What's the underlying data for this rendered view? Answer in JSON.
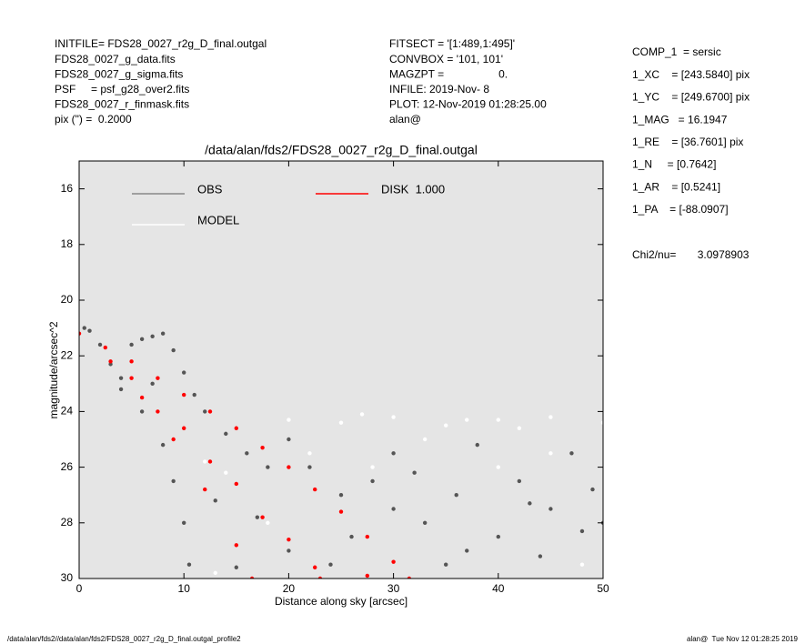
{
  "header": {
    "left": [
      "INITFILE= FDS28_0027_r2g_D_final.outgal",
      "FDS28_0027_g_data.fits",
      "FDS28_0027_g_sigma.fits",
      "PSF     = psf_g28_over2.fits",
      "FDS28_0027_r_finmask.fits",
      "pix (\") =  0.2000"
    ],
    "middle": [
      "FITSECT = '[1:489,1:495]'",
      "CONVBOX = '101, 101'",
      "MAGZPT =                  0.",
      "INFILE: 2019-Nov- 8",
      "PLOT: 12-Nov-2019 01:28:25.00",
      "alan@"
    ],
    "params": [
      "COMP_1  = sersic",
      "1_XC    = [243.5840] pix",
      "1_YC    = [249.6700] pix",
      "1_MAG   = 16.1947",
      "1_RE    = [36.7601] pix",
      "1_N     = [0.7642]",
      "1_AR    = [0.5241]",
      "1_PA    = [-88.0907]"
    ],
    "chi2": "Chi2/nu=       3.0978903"
  },
  "footer": {
    "left": "/data/alan/fds2//data/alan/fds2/FDS28_0027_r2g_D_final.outgal_profile2",
    "right": "alan@  Tue Nov 12 01:28:25 2019"
  },
  "chart_data": {
    "type": "scatter",
    "title": "/data/alan/fds2/FDS28_0027_r2g_D_final.outgal",
    "xlabel": "Distance along sky [arcsec]",
    "ylabel": "magnitude/arcsec^2",
    "xlim": [
      0,
      50
    ],
    "xticks": [
      0,
      10,
      20,
      30,
      40,
      50
    ],
    "ylim": [
      30,
      15
    ],
    "yticks": [
      16,
      18,
      20,
      22,
      24,
      26,
      28,
      30
    ],
    "background": "#e5e5e5",
    "series": [
      {
        "name": "OBS",
        "color": "#555555",
        "x": [
          0.5,
          1,
          2,
          3,
          4,
          5,
          6,
          7,
          8,
          9,
          10,
          4,
          6,
          8,
          9,
          10,
          10.5,
          12,
          14,
          16,
          18,
          20,
          22,
          25,
          28,
          30,
          33,
          36,
          40,
          45,
          48,
          50,
          35,
          42,
          47,
          38,
          30,
          26,
          24,
          20,
          15,
          44,
          7,
          11,
          13,
          17,
          32,
          37,
          43,
          49
        ],
        "values": [
          21.0,
          21.1,
          21.6,
          22.3,
          22.8,
          21.6,
          21.4,
          21.3,
          21.2,
          21.8,
          22.6,
          23.2,
          24.0,
          25.2,
          26.5,
          28.0,
          29.5,
          24.0,
          24.8,
          25.5,
          26.0,
          25.0,
          26.0,
          27.0,
          26.5,
          27.5,
          28.0,
          27.0,
          28.5,
          27.5,
          28.3,
          28.0,
          29.5,
          26.5,
          25.5,
          25.2,
          25.5,
          28.5,
          29.5,
          29.0,
          29.6,
          29.2,
          23.0,
          23.4,
          27.2,
          27.8,
          26.2,
          29.0,
          27.3,
          26.8
        ]
      },
      {
        "name": "MODEL",
        "color": "#ffffff",
        "x": [
          20,
          25,
          30,
          35,
          40,
          45,
          50,
          22,
          28,
          33,
          40,
          45,
          13,
          18,
          48,
          12,
          14,
          27,
          37,
          42
        ],
        "values": [
          24.3,
          24.4,
          24.2,
          24.5,
          24.3,
          24.2,
          24.4,
          25.5,
          26.0,
          25.0,
          26.0,
          25.5,
          29.8,
          28.0,
          29.5,
          25.8,
          26.2,
          24.1,
          24.3,
          24.6
        ]
      },
      {
        "name": "DISK  1.000",
        "color": "#ff0000",
        "x": [
          0,
          2.5,
          5,
          7.5,
          10,
          12.5,
          15,
          17.5,
          20,
          22.5,
          25,
          27.5,
          30,
          31.5,
          3,
          6,
          9,
          12,
          15,
          16.5,
          5,
          10,
          15,
          20,
          23,
          7.5,
          12.5,
          17.5,
          22.5,
          27.5
        ],
        "values": [
          21.2,
          21.7,
          22.2,
          22.8,
          23.4,
          24.0,
          24.6,
          25.3,
          26.0,
          26.8,
          27.6,
          28.5,
          29.4,
          30.0,
          22.2,
          23.5,
          25.0,
          26.8,
          28.8,
          30.0,
          22.8,
          24.6,
          26.6,
          28.6,
          30.0,
          24.0,
          25.8,
          27.8,
          29.6,
          29.9
        ]
      }
    ]
  }
}
